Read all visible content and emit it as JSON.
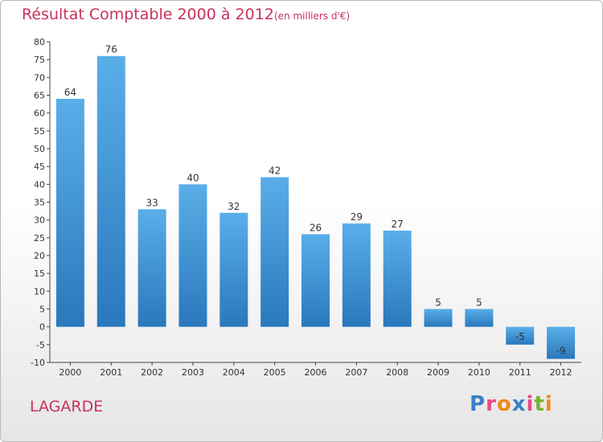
{
  "title": "Résultat Comptable 2000 à 2012",
  "subtitle": "(en milliers d'€)",
  "commune": "LAGARDE",
  "logo": {
    "text": "Proxiti",
    "colors": [
      "#3a7fc8",
      "#e94a8c",
      "#f08a1c",
      "#3a7fc8",
      "#e94a8c",
      "#7ab32e",
      "#f08a1c"
    ]
  },
  "chart_data": {
    "type": "bar",
    "categories": [
      "2000",
      "2001",
      "2002",
      "2003",
      "2004",
      "2005",
      "2006",
      "2007",
      "2008",
      "2009",
      "2010",
      "2011",
      "2012"
    ],
    "values": [
      64,
      76,
      33,
      40,
      32,
      42,
      26,
      29,
      27,
      5,
      5,
      -5,
      -9
    ],
    "data_labels": [
      "64",
      "76",
      "33",
      "40",
      "32",
      "42",
      "26",
      "29",
      "27",
      "5",
      "5",
      "-5",
      "-9"
    ],
    "ylim": [
      -10,
      80
    ],
    "yticks": [
      -10,
      -5,
      0,
      5,
      10,
      15,
      20,
      25,
      30,
      35,
      40,
      45,
      50,
      55,
      60,
      65,
      70,
      75,
      80
    ],
    "grid": false,
    "bar_color": "#3a8fd6",
    "title": "Résultat Comptable 2000 à 2012",
    "xlabel": "",
    "ylabel": ""
  }
}
